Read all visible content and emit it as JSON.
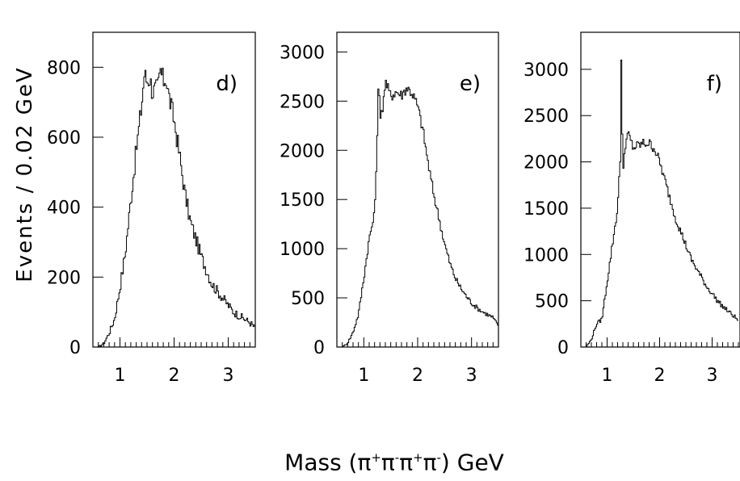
{
  "figure": {
    "ylabel": "Events / 0.02 GeV",
    "xlabel_parts": [
      "Mass (",
      "π",
      "+",
      "π",
      "-",
      "π",
      "+",
      "π",
      "-",
      ") GeV"
    ]
  },
  "chart_data": [
    {
      "type": "histogram",
      "panel_label": "d)",
      "xlim": [
        0.5,
        3.5
      ],
      "ylim": [
        0,
        900
      ],
      "xticks": [
        1,
        2,
        3
      ],
      "yticks": [
        0,
        200,
        400,
        600,
        800
      ],
      "bin_width": 0.02,
      "x": [
        0.5,
        0.6,
        0.7,
        0.8,
        0.9,
        1.0,
        1.1,
        1.2,
        1.3,
        1.4,
        1.45,
        1.5,
        1.55,
        1.6,
        1.7,
        1.75,
        1.8,
        1.85,
        1.9,
        2.0,
        2.1,
        2.2,
        2.3,
        2.4,
        2.5,
        2.6,
        2.7,
        2.8,
        2.9,
        3.0,
        3.1,
        3.2,
        3.3,
        3.4,
        3.5
      ],
      "values": [
        0,
        0,
        10,
        40,
        80,
        170,
        270,
        420,
        560,
        690,
        780,
        760,
        770,
        730,
        740,
        790,
        760,
        770,
        720,
        650,
        550,
        440,
        360,
        310,
        260,
        220,
        180,
        160,
        140,
        120,
        100,
        90,
        80,
        70,
        55
      ]
    },
    {
      "type": "histogram",
      "panel_label": "e)",
      "xlim": [
        0.5,
        3.5
      ],
      "ylim": [
        0,
        3200
      ],
      "xticks": [
        1,
        2,
        3
      ],
      "yticks": [
        0,
        500,
        1000,
        1500,
        2000,
        2500,
        3000
      ],
      "bin_width": 0.02,
      "x": [
        0.5,
        0.6,
        0.7,
        0.8,
        0.9,
        1.0,
        1.1,
        1.2,
        1.25,
        1.28,
        1.3,
        1.35,
        1.4,
        1.5,
        1.6,
        1.7,
        1.8,
        1.9,
        2.0,
        2.1,
        2.2,
        2.3,
        2.4,
        2.5,
        2.6,
        2.7,
        2.8,
        2.9,
        3.0,
        3.1,
        3.2,
        3.3,
        3.4,
        3.5
      ],
      "values": [
        0,
        0,
        40,
        150,
        330,
        700,
        1100,
        1350,
        2150,
        2860,
        2250,
        2450,
        2700,
        2550,
        2600,
        2560,
        2640,
        2580,
        2450,
        2200,
        1850,
        1550,
        1300,
        1050,
        850,
        700,
        600,
        520,
        450,
        400,
        360,
        330,
        300,
        210
      ]
    },
    {
      "type": "histogram",
      "panel_label": "f)",
      "xlim": [
        0.5,
        3.5
      ],
      "ylim": [
        0,
        3400
      ],
      "xticks": [
        1,
        2,
        3
      ],
      "yticks": [
        0,
        500,
        1000,
        1500,
        2000,
        2500,
        3000
      ],
      "bin_width": 0.02,
      "x": [
        0.5,
        0.6,
        0.7,
        0.8,
        0.9,
        1.0,
        1.1,
        1.2,
        1.25,
        1.27,
        1.3,
        1.35,
        1.4,
        1.5,
        1.6,
        1.7,
        1.8,
        1.9,
        2.0,
        2.1,
        2.2,
        2.3,
        2.4,
        2.5,
        2.6,
        2.7,
        2.8,
        2.9,
        3.0,
        3.1,
        3.2,
        3.3,
        3.4,
        3.5
      ],
      "values": [
        0,
        0,
        80,
        250,
        300,
        700,
        1100,
        1500,
        2000,
        3100,
        1900,
        2200,
        2300,
        2150,
        2180,
        2200,
        2200,
        2150,
        2000,
        1800,
        1600,
        1400,
        1250,
        1100,
        950,
        850,
        750,
        650,
        580,
        500,
        440,
        390,
        340,
        290
      ]
    }
  ]
}
